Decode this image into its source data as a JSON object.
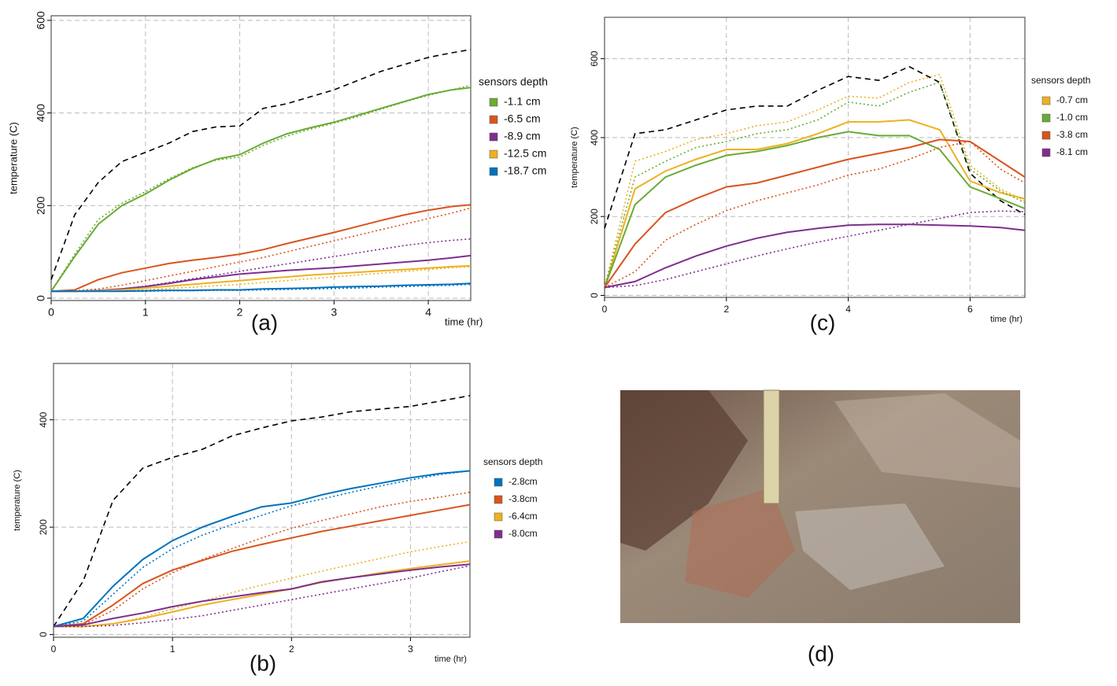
{
  "chart_data": [
    {
      "type": "line",
      "panel_label": "(a)",
      "ylabel": "temperature (C)",
      "xlabel": "time (hr)",
      "legend_title": "sensors depth",
      "legend": "right",
      "grid": true,
      "xlim": [
        0,
        4.45
      ],
      "ylim": [
        -5,
        610
      ],
      "xticks": [
        0,
        1,
        2,
        3,
        4
      ],
      "yticks": [
        0,
        200,
        400,
        600
      ],
      "x": [
        0,
        0.25,
        0.5,
        0.75,
        1,
        1.25,
        1.5,
        1.75,
        2,
        2.25,
        2.5,
        2.75,
        3,
        3.25,
        3.5,
        3.75,
        4,
        4.25,
        4.45
      ],
      "series": [
        {
          "color": "#000000",
          "style": "dashed",
          "values": [
            40,
            180,
            250,
            295,
            315,
            335,
            360,
            370,
            372,
            410,
            420,
            435,
            450,
            470,
            490,
            505,
            520,
            530,
            537
          ]
        },
        {
          "name": "-1.1 cm",
          "color": "#6aab35",
          "style": "solid",
          "values": [
            15,
            90,
            160,
            200,
            225,
            255,
            280,
            300,
            310,
            335,
            355,
            368,
            380,
            395,
            410,
            425,
            440,
            450,
            455
          ]
        },
        {
          "color": "#6aab35",
          "style": "dotted",
          "values": [
            15,
            95,
            170,
            205,
            230,
            258,
            282,
            298,
            305,
            330,
            350,
            365,
            378,
            392,
            408,
            424,
            438,
            450,
            460
          ]
        },
        {
          "name": "-6.5 cm",
          "color": "#d9541e",
          "style": "solid",
          "values": [
            15,
            18,
            40,
            55,
            65,
            75,
            82,
            88,
            95,
            105,
            118,
            130,
            142,
            155,
            168,
            180,
            190,
            198,
            202
          ]
        },
        {
          "color": "#d9541e",
          "style": "dotted",
          "values": [
            15,
            16,
            20,
            28,
            38,
            48,
            58,
            68,
            78,
            88,
            100,
            112,
            124,
            136,
            148,
            160,
            172,
            184,
            195
          ]
        },
        {
          "name": "-8.9 cm",
          "color": "#7e2f8e",
          "style": "solid",
          "values": [
            15,
            15,
            17,
            20,
            25,
            32,
            40,
            46,
            52,
            56,
            60,
            63,
            66,
            70,
            74,
            78,
            82,
            87,
            92
          ]
        },
        {
          "color": "#7e2f8e",
          "style": "dotted",
          "values": [
            15,
            15,
            16,
            20,
            26,
            34,
            42,
            50,
            58,
            66,
            74,
            82,
            90,
            98,
            106,
            114,
            120,
            125,
            128
          ]
        },
        {
          "name": "-12.5 cm",
          "color": "#edb120",
          "style": "solid",
          "values": [
            15,
            15,
            16,
            18,
            22,
            26,
            30,
            34,
            38,
            42,
            46,
            50,
            53,
            56,
            59,
            62,
            65,
            68,
            70
          ]
        },
        {
          "color": "#edb120",
          "style": "dotted",
          "values": [
            15,
            15,
            15,
            16,
            18,
            21,
            24,
            27,
            30,
            34,
            38,
            42,
            46,
            50,
            54,
            58,
            62,
            66,
            68
          ]
        },
        {
          "name": "-18.7 cm",
          "color": "#0072bd",
          "style": "solid",
          "values": [
            15,
            15,
            15,
            15,
            16,
            17,
            17,
            18,
            18,
            20,
            21,
            22,
            24,
            25,
            26,
            28,
            29,
            30,
            32
          ]
        },
        {
          "color": "#0072bd",
          "style": "dotted",
          "values": [
            15,
            15,
            15,
            15,
            15,
            16,
            16,
            17,
            17,
            18,
            19,
            20,
            21,
            22,
            24,
            25,
            27,
            28,
            30
          ]
        }
      ]
    },
    {
      "type": "line",
      "panel_label": "(b)",
      "ylabel": "temperature (C)",
      "xlabel": "time (hr)",
      "legend_title": "sensors depth",
      "legend": "right",
      "grid": true,
      "xlim": [
        0,
        3.5
      ],
      "ylim": [
        -5,
        505
      ],
      "xticks": [
        0,
        1,
        2,
        3
      ],
      "yticks": [
        0,
        200,
        400
      ],
      "x": [
        0,
        0.25,
        0.5,
        0.75,
        1,
        1.25,
        1.5,
        1.75,
        2,
        2.25,
        2.5,
        2.75,
        3,
        3.25,
        3.5
      ],
      "series": [
        {
          "color": "#000000",
          "style": "dashed",
          "values": [
            15,
            100,
            250,
            310,
            330,
            345,
            370,
            385,
            398,
            405,
            415,
            420,
            425,
            435,
            445
          ]
        },
        {
          "name": "-2.8cm",
          "color": "#0072bd",
          "style": "solid",
          "values": [
            15,
            30,
            90,
            140,
            175,
            200,
            220,
            238,
            245,
            260,
            272,
            282,
            292,
            300,
            305
          ]
        },
        {
          "color": "#0072bd",
          "style": "dotted",
          "values": [
            15,
            25,
            75,
            125,
            160,
            185,
            205,
            222,
            240,
            252,
            265,
            277,
            288,
            298,
            305
          ]
        },
        {
          "name": "-3.8cm",
          "color": "#d9541e",
          "style": "solid",
          "values": [
            15,
            20,
            55,
            95,
            120,
            138,
            155,
            168,
            180,
            192,
            202,
            212,
            222,
            232,
            242
          ]
        },
        {
          "color": "#d9541e",
          "style": "dotted",
          "values": [
            15,
            18,
            45,
            85,
            115,
            140,
            160,
            180,
            198,
            212,
            225,
            238,
            248,
            256,
            265
          ]
        },
        {
          "name": "-6.4cm",
          "color": "#edb120",
          "style": "solid",
          "values": [
            15,
            15,
            20,
            30,
            42,
            55,
            65,
            75,
            85,
            97,
            106,
            115,
            123,
            130,
            137
          ]
        },
        {
          "color": "#edb120",
          "style": "dotted",
          "values": [
            15,
            15,
            20,
            32,
            48,
            62,
            78,
            92,
            105,
            118,
            130,
            142,
            154,
            164,
            173
          ]
        },
        {
          "name": "-8.0cm",
          "color": "#7e2f8e",
          "style": "solid",
          "values": [
            15,
            18,
            30,
            40,
            52,
            62,
            70,
            78,
            85,
            98,
            106,
            113,
            120,
            126,
            131
          ]
        },
        {
          "color": "#7e2f8e",
          "style": "dotted",
          "values": [
            15,
            15,
            17,
            22,
            28,
            35,
            45,
            55,
            65,
            75,
            85,
            95,
            105,
            117,
            128
          ]
        }
      ]
    },
    {
      "type": "line",
      "panel_label": "(c)",
      "ylabel": "temperature (C)",
      "xlabel": "time (hr)",
      "legend_title": "sensors depth",
      "legend": "right",
      "grid": true,
      "xlim": [
        0,
        6.9
      ],
      "ylim": [
        -5,
        705
      ],
      "xticks": [
        0,
        2,
        4,
        6
      ],
      "yticks": [
        0,
        200,
        400,
        600
      ],
      "x": [
        0,
        0.5,
        1,
        1.5,
        2,
        2.5,
        3,
        3.5,
        4,
        4.5,
        5,
        5.5,
        6,
        6.5,
        6.9
      ],
      "series": [
        {
          "color": "#000000",
          "style": "dashed",
          "values": [
            170,
            410,
            420,
            445,
            470,
            480,
            480,
            520,
            555,
            545,
            580,
            540,
            310,
            240,
            205
          ]
        },
        {
          "name": "-0.7 cm",
          "color": "#edb120",
          "style": "solid",
          "values": [
            20,
            270,
            315,
            345,
            370,
            370,
            385,
            410,
            440,
            440,
            445,
            420,
            290,
            260,
            245
          ]
        },
        {
          "color": "#edb120",
          "style": "dotted",
          "values": [
            20,
            340,
            365,
            395,
            410,
            430,
            440,
            470,
            505,
            500,
            540,
            560,
            330,
            270,
            240
          ]
        },
        {
          "name": "-1.0 cm",
          "color": "#6aab35",
          "style": "solid",
          "values": [
            20,
            230,
            300,
            330,
            355,
            365,
            380,
            400,
            415,
            405,
            405,
            370,
            275,
            245,
            220
          ]
        },
        {
          "color": "#6aab35",
          "style": "dotted",
          "values": [
            20,
            300,
            340,
            375,
            390,
            410,
            420,
            445,
            490,
            480,
            515,
            540,
            320,
            265,
            235
          ]
        },
        {
          "name": "-3.8 cm",
          "color": "#d9541e",
          "style": "solid",
          "values": [
            20,
            130,
            210,
            245,
            275,
            285,
            305,
            325,
            345,
            360,
            375,
            395,
            390,
            340,
            300
          ]
        },
        {
          "color": "#d9541e",
          "style": "dotted",
          "values": [
            20,
            60,
            140,
            180,
            215,
            240,
            260,
            280,
            305,
            320,
            345,
            375,
            390,
            320,
            285
          ]
        },
        {
          "name": "-8.1 cm",
          "color": "#7e2f8e",
          "style": "solid",
          "values": [
            20,
            35,
            70,
            100,
            125,
            145,
            160,
            170,
            178,
            180,
            180,
            178,
            176,
            172,
            165
          ]
        },
        {
          "color": "#7e2f8e",
          "style": "dotted",
          "values": [
            20,
            25,
            40,
            60,
            80,
            100,
            118,
            135,
            150,
            165,
            180,
            195,
            210,
            214,
            212
          ]
        }
      ]
    }
  ],
  "photo": {
    "label": "(d)"
  }
}
